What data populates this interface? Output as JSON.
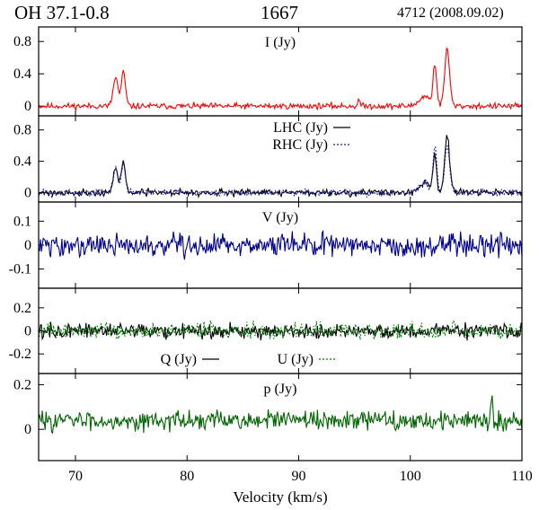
{
  "header": {
    "source": "OH 37.1-0.8",
    "frequency": "1667",
    "obs_id": "4712 (2008.09.02)"
  },
  "chart_data": {
    "type": "line",
    "xlabel": "Velocity (km/s)",
    "xlim": [
      66.7,
      110
    ],
    "xticks": [
      70,
      80,
      90,
      100,
      110
    ],
    "xtick_labels": [
      "70",
      "80",
      "90",
      "100",
      "110"
    ],
    "panels": [
      {
        "name": "stokes-i",
        "label": "I (Jy)",
        "ylim": [
          -0.12,
          0.98
        ],
        "yticks": [
          0,
          0.4,
          0.8
        ],
        "ytick_labels": [
          "0",
          "0.4",
          "0.8"
        ],
        "series": [
          {
            "name": "I (Jy)",
            "color": "#ff0000",
            "dash": "solid",
            "legend": false,
            "noise": 0.03,
            "seed": 11,
            "peaks": [
              [
                73.6,
                0.22,
                0.35
              ],
              [
                74.3,
                0.18,
                0.42
              ],
              [
                95.4,
                0.1,
                0.08
              ],
              [
                101.3,
                0.5,
                0.12
              ],
              [
                102.2,
                0.16,
                0.5
              ],
              [
                103.3,
                0.22,
                0.7
              ]
            ]
          }
        ]
      },
      {
        "name": "lhc-rhc",
        "label": "",
        "ylim": [
          -0.12,
          0.98
        ],
        "yticks": [
          0,
          0.4,
          0.8
        ],
        "ytick_labels": [
          "0",
          "0.4",
          "0.8"
        ],
        "series": [
          {
            "name": "LHC (Jy)",
            "color": "#000000",
            "dash": "solid",
            "legend": true,
            "noise": 0.035,
            "seed": 21,
            "peaks": [
              [
                73.6,
                0.22,
                0.3
              ],
              [
                74.3,
                0.18,
                0.4
              ],
              [
                101.3,
                0.5,
                0.12
              ],
              [
                102.2,
                0.16,
                0.45
              ],
              [
                103.3,
                0.22,
                0.74
              ]
            ]
          },
          {
            "name": "RHC (Jy)",
            "color": "#1a1aa0",
            "dash": "2,2",
            "legend": true,
            "noise": 0.035,
            "seed": 33,
            "peaks": [
              [
                73.6,
                0.22,
                0.32
              ],
              [
                74.3,
                0.18,
                0.38
              ],
              [
                101.3,
                0.5,
                0.12
              ],
              [
                102.2,
                0.16,
                0.58
              ],
              [
                103.3,
                0.22,
                0.62
              ]
            ]
          }
        ]
      },
      {
        "name": "stokes-v",
        "label": "V (Jy)",
        "ylim": [
          -0.18,
          0.18
        ],
        "yticks": [
          -0.1,
          0,
          0.1
        ],
        "ytick_labels": [
          "-0.1",
          "0",
          "0.1"
        ],
        "series": [
          {
            "name": "V (Jy)",
            "color": "#000090",
            "dash": "solid",
            "legend": false,
            "noise": 0.04,
            "seed": 45,
            "peaks": []
          }
        ]
      },
      {
        "name": "stokes-qu",
        "label": "",
        "ylim": [
          -0.37,
          0.37
        ],
        "yticks": [
          -0.2,
          0,
          0.2
        ],
        "ytick_labels": [
          "-0.2",
          "0",
          "0.2"
        ],
        "series": [
          {
            "name": "Q (Jy)",
            "color": "#000000",
            "dash": "solid",
            "legend": true,
            "noise": 0.055,
            "seed": 57,
            "peaks": []
          },
          {
            "name": "U (Jy)",
            "color": "#008000",
            "dash": "2,2",
            "legend": true,
            "noise": 0.055,
            "seed": 69,
            "peaks": []
          }
        ]
      },
      {
        "name": "stokes-p",
        "label": "p (Jy)",
        "ylim": [
          -0.14,
          0.25
        ],
        "yticks": [
          0,
          0.2
        ],
        "ytick_labels": [
          "0",
          "0.2"
        ],
        "series": [
          {
            "name": "p (Jy)",
            "color": "#006400",
            "dash": "solid",
            "legend": false,
            "noise": 0.035,
            "seed": 83,
            "offset": 0.04,
            "peaks": [
              [
                107.3,
                0.08,
                0.11
              ]
            ]
          }
        ]
      }
    ]
  }
}
